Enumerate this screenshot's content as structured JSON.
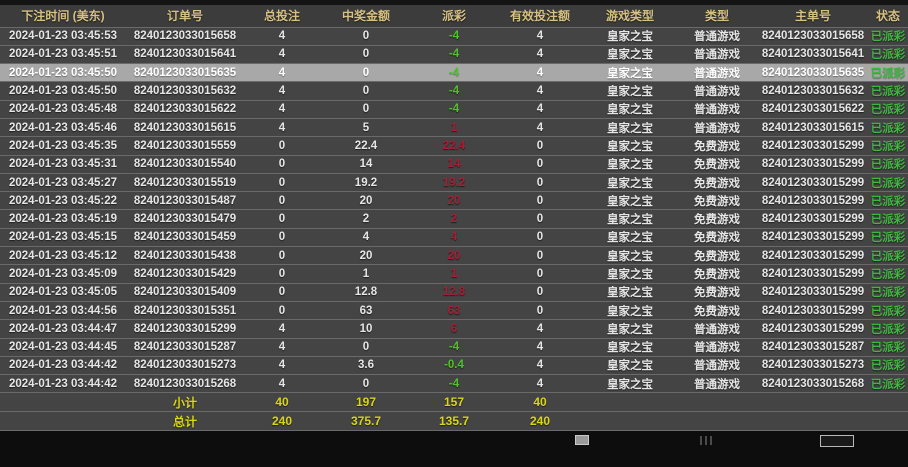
{
  "colors": {
    "top_strip": "#141414",
    "bottom_bar": "#0d0d0d",
    "header_bg": "#3c3c3c",
    "header_text": "#d6c182",
    "row_bg": "#444444",
    "border": "#6a6a6a",
    "cell_text": "#e6e6e6",
    "selected_bg": "#a8a8a8",
    "green": "#4fc32a",
    "red": "#a32036",
    "status_green": "#41b441",
    "yellow": "#d9d616"
  },
  "table": {
    "columns": [
      {
        "key": "time",
        "label": "下注时间 (美东)"
      },
      {
        "key": "order",
        "label": "订单号"
      },
      {
        "key": "bet",
        "label": "总投注"
      },
      {
        "key": "win",
        "label": "中奖金额"
      },
      {
        "key": "payout",
        "label": "派彩"
      },
      {
        "key": "valid",
        "label": "有效投注额"
      },
      {
        "key": "game",
        "label": "游戏类型"
      },
      {
        "key": "type",
        "label": "类型"
      },
      {
        "key": "main",
        "label": "主单号"
      },
      {
        "key": "status",
        "label": "状态"
      }
    ],
    "rows": [
      {
        "time": "2024-01-23 03:45:53",
        "order": "8240123033015658",
        "bet": "4",
        "win": "0",
        "payout": "-4",
        "payout_color": "green",
        "valid": "4",
        "game": "皇家之宝",
        "type": "普通游戏",
        "main": "8240123033015658",
        "status": "已派彩",
        "selected": false
      },
      {
        "time": "2024-01-23 03:45:51",
        "order": "8240123033015641",
        "bet": "4",
        "win": "0",
        "payout": "-4",
        "payout_color": "green",
        "valid": "4",
        "game": "皇家之宝",
        "type": "普通游戏",
        "main": "8240123033015641",
        "status": "已派彩",
        "selected": false
      },
      {
        "time": "2024-01-23 03:45:50",
        "order": "8240123033015635",
        "bet": "4",
        "win": "0",
        "payout": "-4",
        "payout_color": "green",
        "valid": "4",
        "game": "皇家之宝",
        "type": "普通游戏",
        "main": "8240123033015635",
        "status": "已派彩",
        "selected": true
      },
      {
        "time": "2024-01-23 03:45:50",
        "order": "8240123033015632",
        "bet": "4",
        "win": "0",
        "payout": "-4",
        "payout_color": "green",
        "valid": "4",
        "game": "皇家之宝",
        "type": "普通游戏",
        "main": "8240123033015632",
        "status": "已派彩",
        "selected": false
      },
      {
        "time": "2024-01-23 03:45:48",
        "order": "8240123033015622",
        "bet": "4",
        "win": "0",
        "payout": "-4",
        "payout_color": "green",
        "valid": "4",
        "game": "皇家之宝",
        "type": "普通游戏",
        "main": "8240123033015622",
        "status": "已派彩",
        "selected": false
      },
      {
        "time": "2024-01-23 03:45:46",
        "order": "8240123033015615",
        "bet": "4",
        "win": "5",
        "payout": "1",
        "payout_color": "red",
        "valid": "4",
        "game": "皇家之宝",
        "type": "普通游戏",
        "main": "8240123033015615",
        "status": "已派彩",
        "selected": false
      },
      {
        "time": "2024-01-23 03:45:35",
        "order": "8240123033015559",
        "bet": "0",
        "win": "22.4",
        "payout": "22.4",
        "payout_color": "red",
        "valid": "0",
        "game": "皇家之宝",
        "type": "免费游戏",
        "main": "8240123033015299",
        "status": "已派彩",
        "selected": false
      },
      {
        "time": "2024-01-23 03:45:31",
        "order": "8240123033015540",
        "bet": "0",
        "win": "14",
        "payout": "14",
        "payout_color": "red",
        "valid": "0",
        "game": "皇家之宝",
        "type": "免费游戏",
        "main": "8240123033015299",
        "status": "已派彩",
        "selected": false
      },
      {
        "time": "2024-01-23 03:45:27",
        "order": "8240123033015519",
        "bet": "0",
        "win": "19.2",
        "payout": "19.2",
        "payout_color": "red",
        "valid": "0",
        "game": "皇家之宝",
        "type": "免费游戏",
        "main": "8240123033015299",
        "status": "已派彩",
        "selected": false
      },
      {
        "time": "2024-01-23 03:45:22",
        "order": "8240123033015487",
        "bet": "0",
        "win": "20",
        "payout": "20",
        "payout_color": "red",
        "valid": "0",
        "game": "皇家之宝",
        "type": "免费游戏",
        "main": "8240123033015299",
        "status": "已派彩",
        "selected": false
      },
      {
        "time": "2024-01-23 03:45:19",
        "order": "8240123033015479",
        "bet": "0",
        "win": "2",
        "payout": "2",
        "payout_color": "red",
        "valid": "0",
        "game": "皇家之宝",
        "type": "免费游戏",
        "main": "8240123033015299",
        "status": "已派彩",
        "selected": false
      },
      {
        "time": "2024-01-23 03:45:15",
        "order": "8240123033015459",
        "bet": "0",
        "win": "4",
        "payout": "4",
        "payout_color": "red",
        "valid": "0",
        "game": "皇家之宝",
        "type": "免费游戏",
        "main": "8240123033015299",
        "status": "已派彩",
        "selected": false
      },
      {
        "time": "2024-01-23 03:45:12",
        "order": "8240123033015438",
        "bet": "0",
        "win": "20",
        "payout": "20",
        "payout_color": "red",
        "valid": "0",
        "game": "皇家之宝",
        "type": "免费游戏",
        "main": "8240123033015299",
        "status": "已派彩",
        "selected": false
      },
      {
        "time": "2024-01-23 03:45:09",
        "order": "8240123033015429",
        "bet": "0",
        "win": "1",
        "payout": "1",
        "payout_color": "red",
        "valid": "0",
        "game": "皇家之宝",
        "type": "免费游戏",
        "main": "8240123033015299",
        "status": "已派彩",
        "selected": false
      },
      {
        "time": "2024-01-23 03:45:05",
        "order": "8240123033015409",
        "bet": "0",
        "win": "12.8",
        "payout": "12.8",
        "payout_color": "red",
        "valid": "0",
        "game": "皇家之宝",
        "type": "免费游戏",
        "main": "8240123033015299",
        "status": "已派彩",
        "selected": false
      },
      {
        "time": "2024-01-23 03:44:56",
        "order": "8240123033015351",
        "bet": "0",
        "win": "63",
        "payout": "63",
        "payout_color": "red",
        "valid": "0",
        "game": "皇家之宝",
        "type": "免费游戏",
        "main": "8240123033015299",
        "status": "已派彩",
        "selected": false
      },
      {
        "time": "2024-01-23 03:44:47",
        "order": "8240123033015299",
        "bet": "4",
        "win": "10",
        "payout": "6",
        "payout_color": "red",
        "valid": "4",
        "game": "皇家之宝",
        "type": "普通游戏",
        "main": "8240123033015299",
        "status": "已派彩",
        "selected": false
      },
      {
        "time": "2024-01-23 03:44:45",
        "order": "8240123033015287",
        "bet": "4",
        "win": "0",
        "payout": "-4",
        "payout_color": "green",
        "valid": "4",
        "game": "皇家之宝",
        "type": "普通游戏",
        "main": "8240123033015287",
        "status": "已派彩",
        "selected": false
      },
      {
        "time": "2024-01-23 03:44:42",
        "order": "8240123033015273",
        "bet": "4",
        "win": "3.6",
        "payout": "-0.4",
        "payout_color": "green",
        "valid": "4",
        "game": "皇家之宝",
        "type": "普通游戏",
        "main": "8240123033015273",
        "status": "已派彩",
        "selected": false
      },
      {
        "time": "2024-01-23 03:44:42",
        "order": "8240123033015268",
        "bet": "4",
        "win": "0",
        "payout": "-4",
        "payout_color": "green",
        "valid": "4",
        "game": "皇家之宝",
        "type": "普通游戏",
        "main": "8240123033015268",
        "status": "已派彩",
        "selected": false
      }
    ],
    "summary": [
      {
        "key": "subtotal",
        "label": "小计",
        "bet": "40",
        "win": "197",
        "payout": "157",
        "valid": "40"
      },
      {
        "key": "total",
        "label": "总计",
        "bet": "240",
        "win": "375.7",
        "payout": "135.7",
        "valid": "240"
      }
    ]
  }
}
